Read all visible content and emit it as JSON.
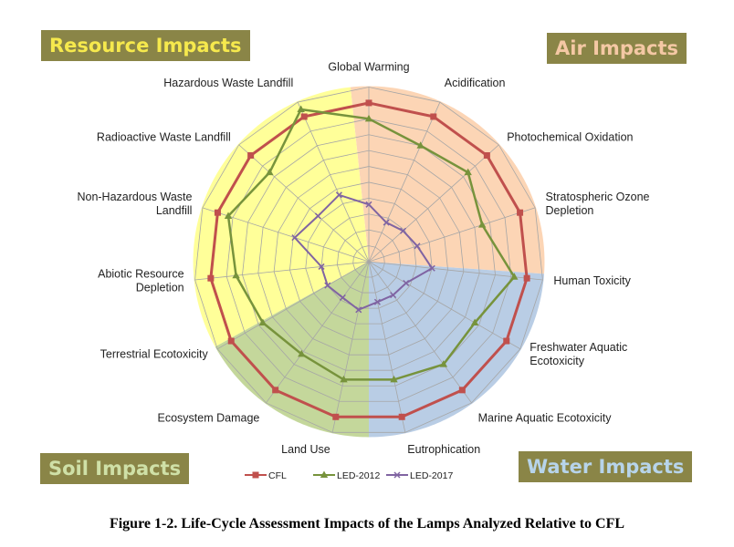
{
  "quadrants": {
    "resource": "Resource Impacts",
    "air": "Air Impacts",
    "soil": "Soil Impacts",
    "water": "Water Impacts"
  },
  "caption": "Figure 1-2. Life-Cycle Assessment Impacts of the Lamps Analyzed Relative to CFL",
  "colors": {
    "cfl": "#c0504d",
    "led2012": "#77933c",
    "led2017": "#8064a2",
    "resource_bg": "#ffff99",
    "air_bg": "#fcd5b5",
    "soil_bg": "#c4d79b",
    "water_bg": "#b9cde5",
    "grid": "#a6a6a6"
  },
  "chart_data": {
    "type": "radar",
    "categories": [
      "Global Warming",
      "Acidification",
      "Photochemical Oxidation",
      "Stratospheric Ozone Depletion",
      "Human Toxicity",
      "Freshwater Aquatic Ecotoxicity",
      "Marine Aquatic Ecotoxicity",
      "Eutrophication",
      "Land Use",
      "Ecosystem Damage",
      "Terrestrial Ecotoxicity",
      "Abiotic Resource Depletion",
      "Non-Hazardous Waste Landfill",
      "Radioactive Waste Landfill",
      "Hazardous Waste Landfill"
    ],
    "category_label_lines": [
      [
        "Global Warming"
      ],
      [
        "Acidification"
      ],
      [
        "Photochemical Oxidation"
      ],
      [
        "Stratospheric Ozone",
        "Depletion"
      ],
      [
        "Human Toxicity"
      ],
      [
        "Freshwater Aquatic",
        "Ecotoxicity"
      ],
      [
        "Marine Aquatic Ecotoxicity"
      ],
      [
        "Eutrophication"
      ],
      [
        "Land Use"
      ],
      [
        "Ecosystem Damage"
      ],
      [
        "Terrestrial Ecotoxicity"
      ],
      [
        "Abiotic Resource",
        "Depletion"
      ],
      [
        "Non-Hazardous Waste",
        "Landfill"
      ],
      [
        "Radioactive Waste Landfill"
      ],
      [
        "Hazardous Waste Landfill"
      ]
    ],
    "series": [
      {
        "name": "CFL",
        "values": [
          1,
          1,
          1,
          1,
          1,
          1,
          1,
          1,
          1,
          1,
          1,
          1,
          1,
          1,
          1
        ]
      },
      {
        "name": "LED-2012",
        "values": [
          0.9,
          0.8,
          0.84,
          0.75,
          0.92,
          0.77,
          0.8,
          0.76,
          0.76,
          0.72,
          0.77,
          0.84,
          0.93,
          0.84,
          1.05
        ]
      },
      {
        "name": "LED-2017",
        "values": [
          0.36,
          0.27,
          0.29,
          0.32,
          0.4,
          0.27,
          0.26,
          0.26,
          0.31,
          0.28,
          0.3,
          0.3,
          0.49,
          0.43,
          0.46
        ]
      }
    ],
    "rmax": 1.1,
    "grid_rings": 11,
    "legend_position": "bottom"
  }
}
